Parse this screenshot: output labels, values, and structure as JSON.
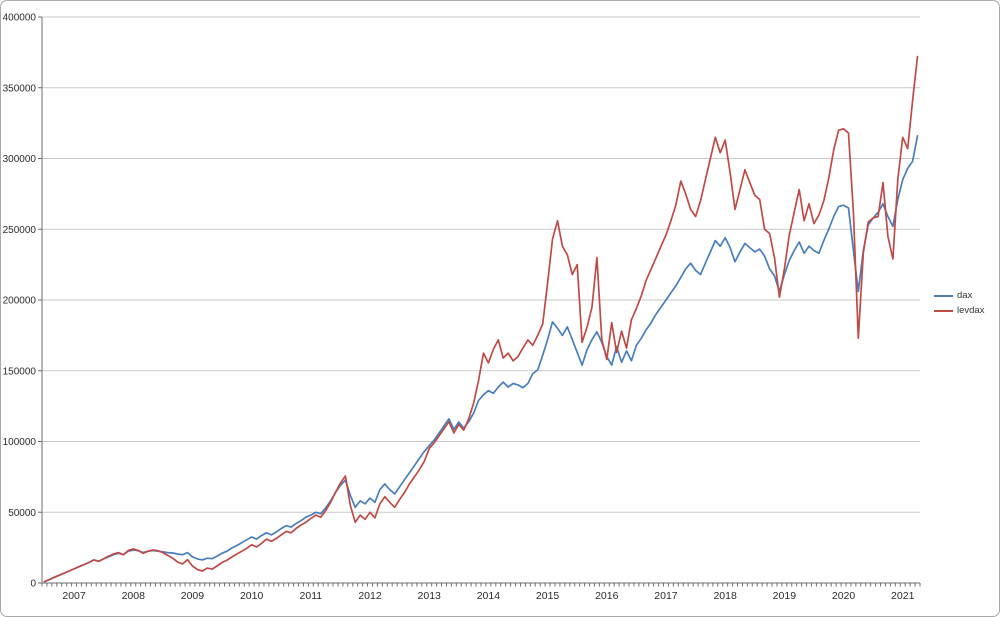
{
  "frame": {
    "background": "#ffffff",
    "border_color": "#a9a9a9"
  },
  "legend": {
    "position": "right"
  },
  "chart_data": {
    "type": "line",
    "title": "",
    "xlabel": "",
    "ylabel": "",
    "x_freq": "monthly",
    "x_start": "2006-07",
    "x_tick_labels": [
      "2007",
      "2008",
      "2009",
      "2010",
      "2011",
      "2012",
      "2013",
      "2014",
      "2015",
      "2016",
      "2017",
      "2018",
      "2019",
      "2020",
      "2021"
    ],
    "y_tick_labels": [
      "0",
      "50000",
      "100000",
      "150000",
      "200000",
      "250000",
      "300000",
      "350000",
      "400000"
    ],
    "ylim": [
      0,
      400000
    ],
    "ytick_step": 50000,
    "grid": "horizontal",
    "grid_color": "#c9c9c9",
    "axis_color": "#6e6e6e",
    "legend_position": "right",
    "series": [
      {
        "name": "dax",
        "color": "#4a7eba",
        "values": [
          1000,
          2500,
          4000,
          5500,
          7000,
          8500,
          10000,
          11500,
          13000,
          14500,
          16300,
          15500,
          17000,
          18500,
          20000,
          21000,
          20000,
          22500,
          23300,
          22800,
          21500,
          22500,
          23000,
          22500,
          22000,
          21500,
          21200,
          20500,
          20000,
          21500,
          18500,
          17000,
          16300,
          17500,
          17200,
          19000,
          21000,
          22500,
          24700,
          26500,
          28500,
          30500,
          32500,
          31000,
          33500,
          35500,
          34000,
          36000,
          38500,
          40500,
          39500,
          42000,
          44000,
          46500,
          48000,
          50000,
          49000,
          53000,
          58000,
          64000,
          69000,
          72800,
          62000,
          53500,
          58000,
          56000,
          60000,
          57000,
          66000,
          70000,
          66000,
          63000,
          68000,
          73000,
          78000,
          83000,
          88000,
          93000,
          97000,
          101000,
          106000,
          111000,
          116000,
          108500,
          113800,
          109500,
          114000,
          120000,
          129000,
          133000,
          136000,
          134000,
          138500,
          142000,
          138500,
          141000,
          140000,
          138000,
          141000,
          148000,
          150500,
          161000,
          172000,
          184500,
          180000,
          175000,
          181000,
          172000,
          163000,
          154000,
          165000,
          172000,
          177500,
          170000,
          160000,
          154000,
          167000,
          156000,
          164000,
          157000,
          168000,
          173000,
          179000,
          184000,
          190000,
          195000,
          200000,
          205000,
          210000,
          216000,
          222000,
          226000,
          221000,
          218000,
          226000,
          234000,
          242000,
          238000,
          244000,
          237000,
          227000,
          234000,
          240000,
          237000,
          234000,
          236000,
          231000,
          222000,
          217000,
          206000,
          218000,
          228000,
          235000,
          241000,
          233000,
          238000,
          235000,
          233000,
          242000,
          250000,
          259000,
          266000,
          267000,
          265000,
          235000,
          206000,
          235000,
          253000,
          258000,
          262000,
          268000,
          259000,
          252000,
          271000,
          285000,
          293000,
          298000,
          316000
        ]
      },
      {
        "name": "levdax",
        "color": "#bf4b47",
        "values": [
          1000,
          2500,
          4000,
          5500,
          7000,
          8500,
          10000,
          11500,
          13000,
          14500,
          16300,
          15300,
          17200,
          19000,
          20500,
          21500,
          20000,
          23000,
          24000,
          23000,
          21000,
          22500,
          23300,
          22800,
          21500,
          19500,
          17500,
          14800,
          13500,
          16500,
          12000,
          9500,
          8500,
          10500,
          9800,
          12000,
          14500,
          16200,
          18400,
          20500,
          22500,
          24500,
          27000,
          25500,
          28000,
          31000,
          29500,
          31500,
          34000,
          36500,
          35500,
          38500,
          41000,
          43000,
          45500,
          48000,
          46500,
          51000,
          57000,
          64000,
          70500,
          75600,
          55000,
          43000,
          48000,
          45000,
          50000,
          46000,
          56000,
          61000,
          57000,
          53500,
          59000,
          64000,
          70000,
          75000,
          80000,
          86000,
          95000,
          99000,
          104000,
          109000,
          114000,
          106000,
          112000,
          108000,
          116000,
          127000,
          143000,
          162500,
          155500,
          165000,
          171800,
          159000,
          162500,
          157000,
          160000,
          166000,
          171800,
          168000,
          175000,
          183000,
          212000,
          243000,
          256000,
          238000,
          232000,
          218000,
          225000,
          170000,
          181000,
          195000,
          230000,
          172000,
          158000,
          184000,
          163000,
          178000,
          166000,
          186000,
          194000,
          203000,
          214000,
          222000,
          230000,
          238000,
          246000,
          256000,
          267000,
          284000,
          275000,
          264000,
          259000,
          270000,
          285000,
          300000,
          315000,
          304000,
          313000,
          290000,
          264000,
          278000,
          292000,
          283000,
          274000,
          271000,
          250000,
          247000,
          230000,
          202000,
          222000,
          246000,
          262000,
          278000,
          256000,
          268000,
          254000,
          260000,
          270000,
          286000,
          306000,
          320000,
          321000,
          318000,
          262000,
          173000,
          233000,
          255000,
          258000,
          259000,
          283000,
          245000,
          229000,
          285000,
          315000,
          307000,
          341000,
          372000
        ]
      }
    ]
  }
}
